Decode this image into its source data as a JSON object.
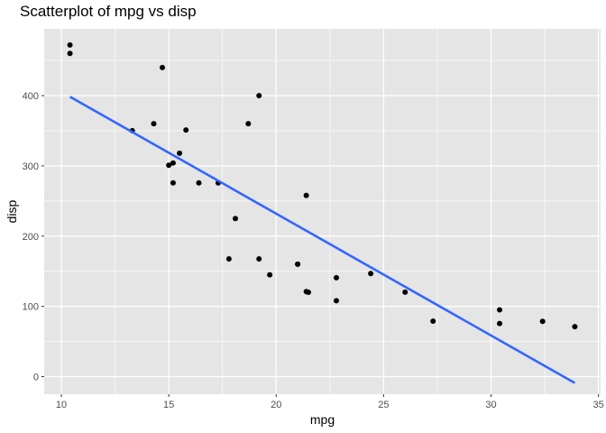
{
  "chart_data": {
    "type": "scatter",
    "title": "Scatterplot of mpg vs disp",
    "xlabel": "mpg",
    "ylabel": "disp",
    "xlim": [
      9.2,
      35.1
    ],
    "ylim": [
      -25,
      495
    ],
    "xticks": [
      10,
      15,
      20,
      25,
      30,
      35
    ],
    "yticks": [
      0,
      100,
      200,
      300,
      400
    ],
    "grid": true,
    "colors": {
      "panel": "#e5e5e5",
      "grid": "#ffffff",
      "points": "#000000",
      "fit_line": "#3366ff"
    },
    "points": {
      "x": [
        21.0,
        21.0,
        22.8,
        21.4,
        18.7,
        18.1,
        14.3,
        24.4,
        22.8,
        19.2,
        17.8,
        16.4,
        17.3,
        15.2,
        10.4,
        10.4,
        14.7,
        32.4,
        30.4,
        33.9,
        21.5,
        15.5,
        15.2,
        13.3,
        19.2,
        27.3,
        26.0,
        30.4,
        15.8,
        19.7,
        15.0,
        21.4
      ],
      "y": [
        160,
        160,
        108,
        258,
        360,
        225,
        360,
        146.7,
        140.8,
        167.6,
        167.6,
        275.8,
        275.8,
        275.8,
        472,
        460,
        440,
        78.7,
        75.7,
        71.1,
        120.1,
        318,
        304,
        350,
        400,
        79,
        120.3,
        95.1,
        351,
        145,
        301,
        121
      ]
    },
    "fit_line": {
      "x": [
        10.4,
        33.9
      ],
      "y": [
        398.4,
        -9.0
      ]
    }
  }
}
